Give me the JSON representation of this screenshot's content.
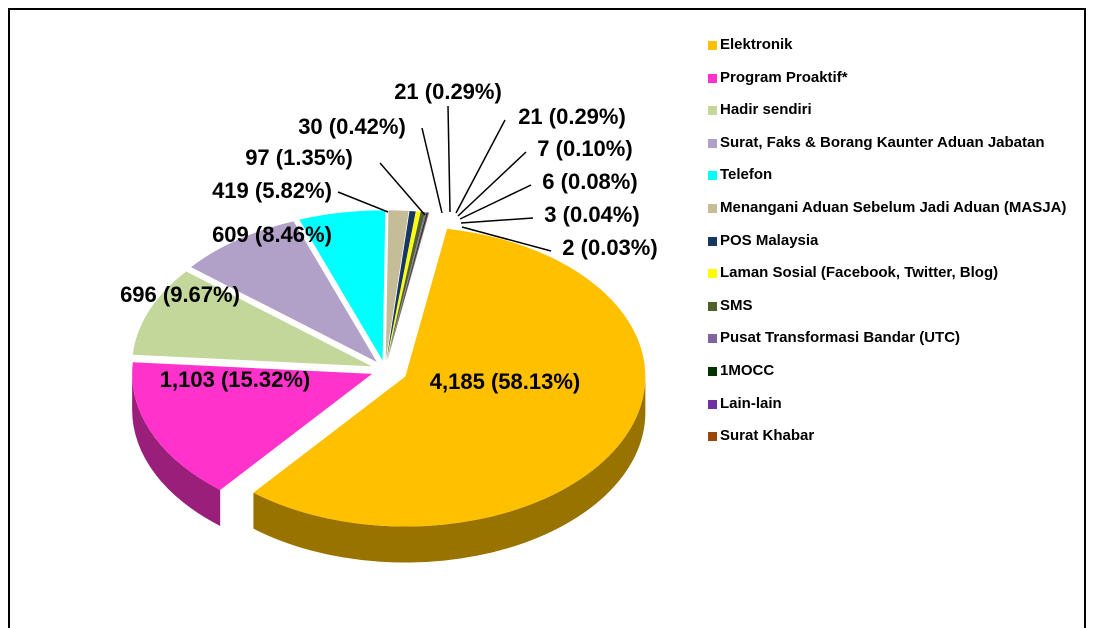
{
  "chart_data": {
    "type": "pie",
    "categories": [
      "Elektronik",
      "Program Proaktif*",
      "Hadir sendiri",
      "Surat, Faks & Borang Kaunter Aduan Jabatan",
      "Telefon",
      "Menangani Aduan Sebelum Jadi Aduan (MASJA)",
      "POS Malaysia",
      "Laman Sosial (Facebook, Twitter, Blog)",
      "SMS",
      "Pusat Transformasi Bandar (UTC)",
      "1MOCC",
      "Lain-lain",
      "Surat Khabar"
    ],
    "values": [
      4185,
      1103,
      696,
      609,
      419,
      97,
      30,
      21,
      21,
      7,
      6,
      3,
      2
    ],
    "value_labels": [
      "4,185 (58.13%)",
      "1,103 (15.32%)",
      "696 (9.67%)",
      "609 (8.46%)",
      "419 (5.82%)",
      "97 (1.35%)",
      "30 (0.42%)",
      "21 (0.29%)",
      "21 (0.29%)",
      "7 (0.10%)",
      "6 (0.08%)",
      "3 (0.04%)",
      "2 (0.03%)"
    ],
    "colors": [
      "#ffc000",
      "#ff33cc",
      "#c4d79b",
      "#b1a0c7",
      "#00ffff",
      "#c4bd97",
      "#17375e",
      "#ffff00",
      "#4f6228",
      "#8064a2",
      "#003300",
      "#7030a0",
      "#974706"
    ],
    "legend": "right"
  }
}
